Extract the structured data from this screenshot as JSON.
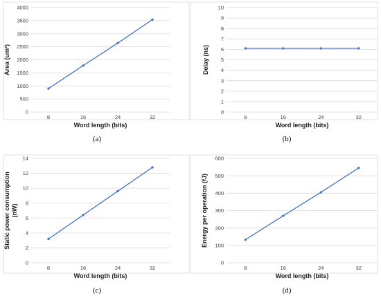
{
  "chart_data": [
    {
      "type": "line",
      "caption": "(a)",
      "xlabel": "Word length (bits)",
      "ylabel": "Area (um²)",
      "categories": [
        "8",
        "16",
        "24",
        "32"
      ],
      "series": [
        {
          "values": [
            900,
            1780,
            2640,
            3540
          ]
        }
      ],
      "ylim": [
        0,
        4000
      ],
      "yticks": [
        0,
        500,
        1000,
        1500,
        2000,
        2500,
        3000,
        3500,
        4000
      ],
      "grid": "horizontal",
      "color": "#4472c4"
    },
    {
      "type": "line",
      "caption": "(b)",
      "xlabel": "Word length (bits)",
      "ylabel": "Delay (ns)",
      "categories": [
        "8",
        "16",
        "24",
        "32"
      ],
      "series": [
        {
          "values": [
            6.1,
            6.1,
            6.1,
            6.1
          ]
        }
      ],
      "ylim": [
        0,
        10
      ],
      "yticks": [
        0,
        1,
        2,
        3,
        4,
        5,
        6,
        7,
        8,
        9,
        10
      ],
      "grid": "horizontal",
      "color": "#4472c4"
    },
    {
      "type": "line",
      "caption": "(c)",
      "xlabel": "Word length (bits)",
      "ylabel": [
        "Static power consumption",
        "(nW)"
      ],
      "categories": [
        "8",
        "16",
        "24",
        "32"
      ],
      "series": [
        {
          "values": [
            3.2,
            6.4,
            9.6,
            12.8
          ]
        }
      ],
      "ylim": [
        0,
        14
      ],
      "yticks": [
        0,
        2,
        4,
        6,
        8,
        10,
        12,
        14
      ],
      "grid": "horizontal",
      "color": "#4472c4"
    },
    {
      "type": "line",
      "caption": "(d)",
      "xlabel": "Word length (bits)",
      "ylabel": "Energy per operation (fJ)",
      "categories": [
        "8",
        "16",
        "24",
        "32"
      ],
      "series": [
        {
          "values": [
            133,
            270,
            405,
            545
          ]
        }
      ],
      "ylim": [
        0,
        600
      ],
      "yticks": [
        0,
        100,
        200,
        300,
        400,
        500,
        600
      ],
      "grid": "horizontal",
      "color": "#4472c4"
    }
  ]
}
